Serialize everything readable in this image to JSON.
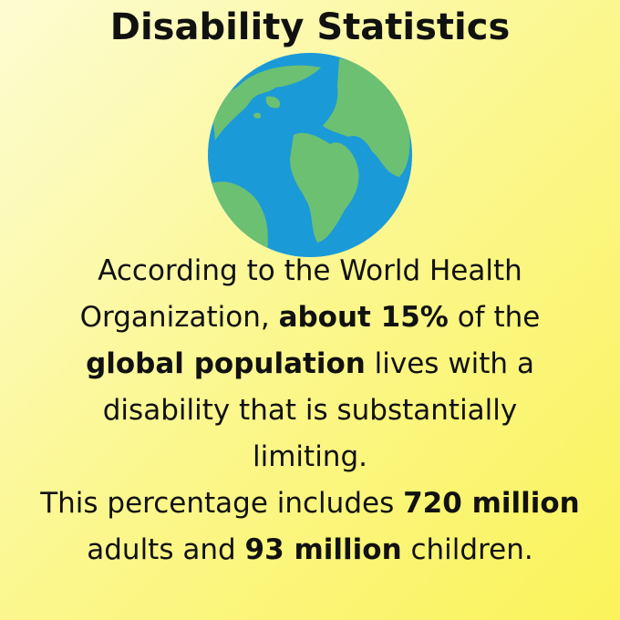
{
  "title": "Disability Statistics",
  "paragraphs": [
    {
      "runs": [
        {
          "text": "According to the World Health Organization, ",
          "bold": false
        },
        {
          "text": "about 15%",
          "bold": true
        },
        {
          "text": " of the ",
          "bold": false
        },
        {
          "text": "global population",
          "bold": true
        },
        {
          "text": " lives with a disability that is substantially limiting.",
          "bold": false
        }
      ]
    },
    {
      "runs": [
        {
          "text": "This percentage includes ",
          "bold": false
        },
        {
          "text": "720 million",
          "bold": true
        },
        {
          "text": " adults and ",
          "bold": false
        },
        {
          "text": "93 million",
          "bold": true
        },
        {
          "text": " children.",
          "bold": false
        }
      ]
    }
  ]
}
